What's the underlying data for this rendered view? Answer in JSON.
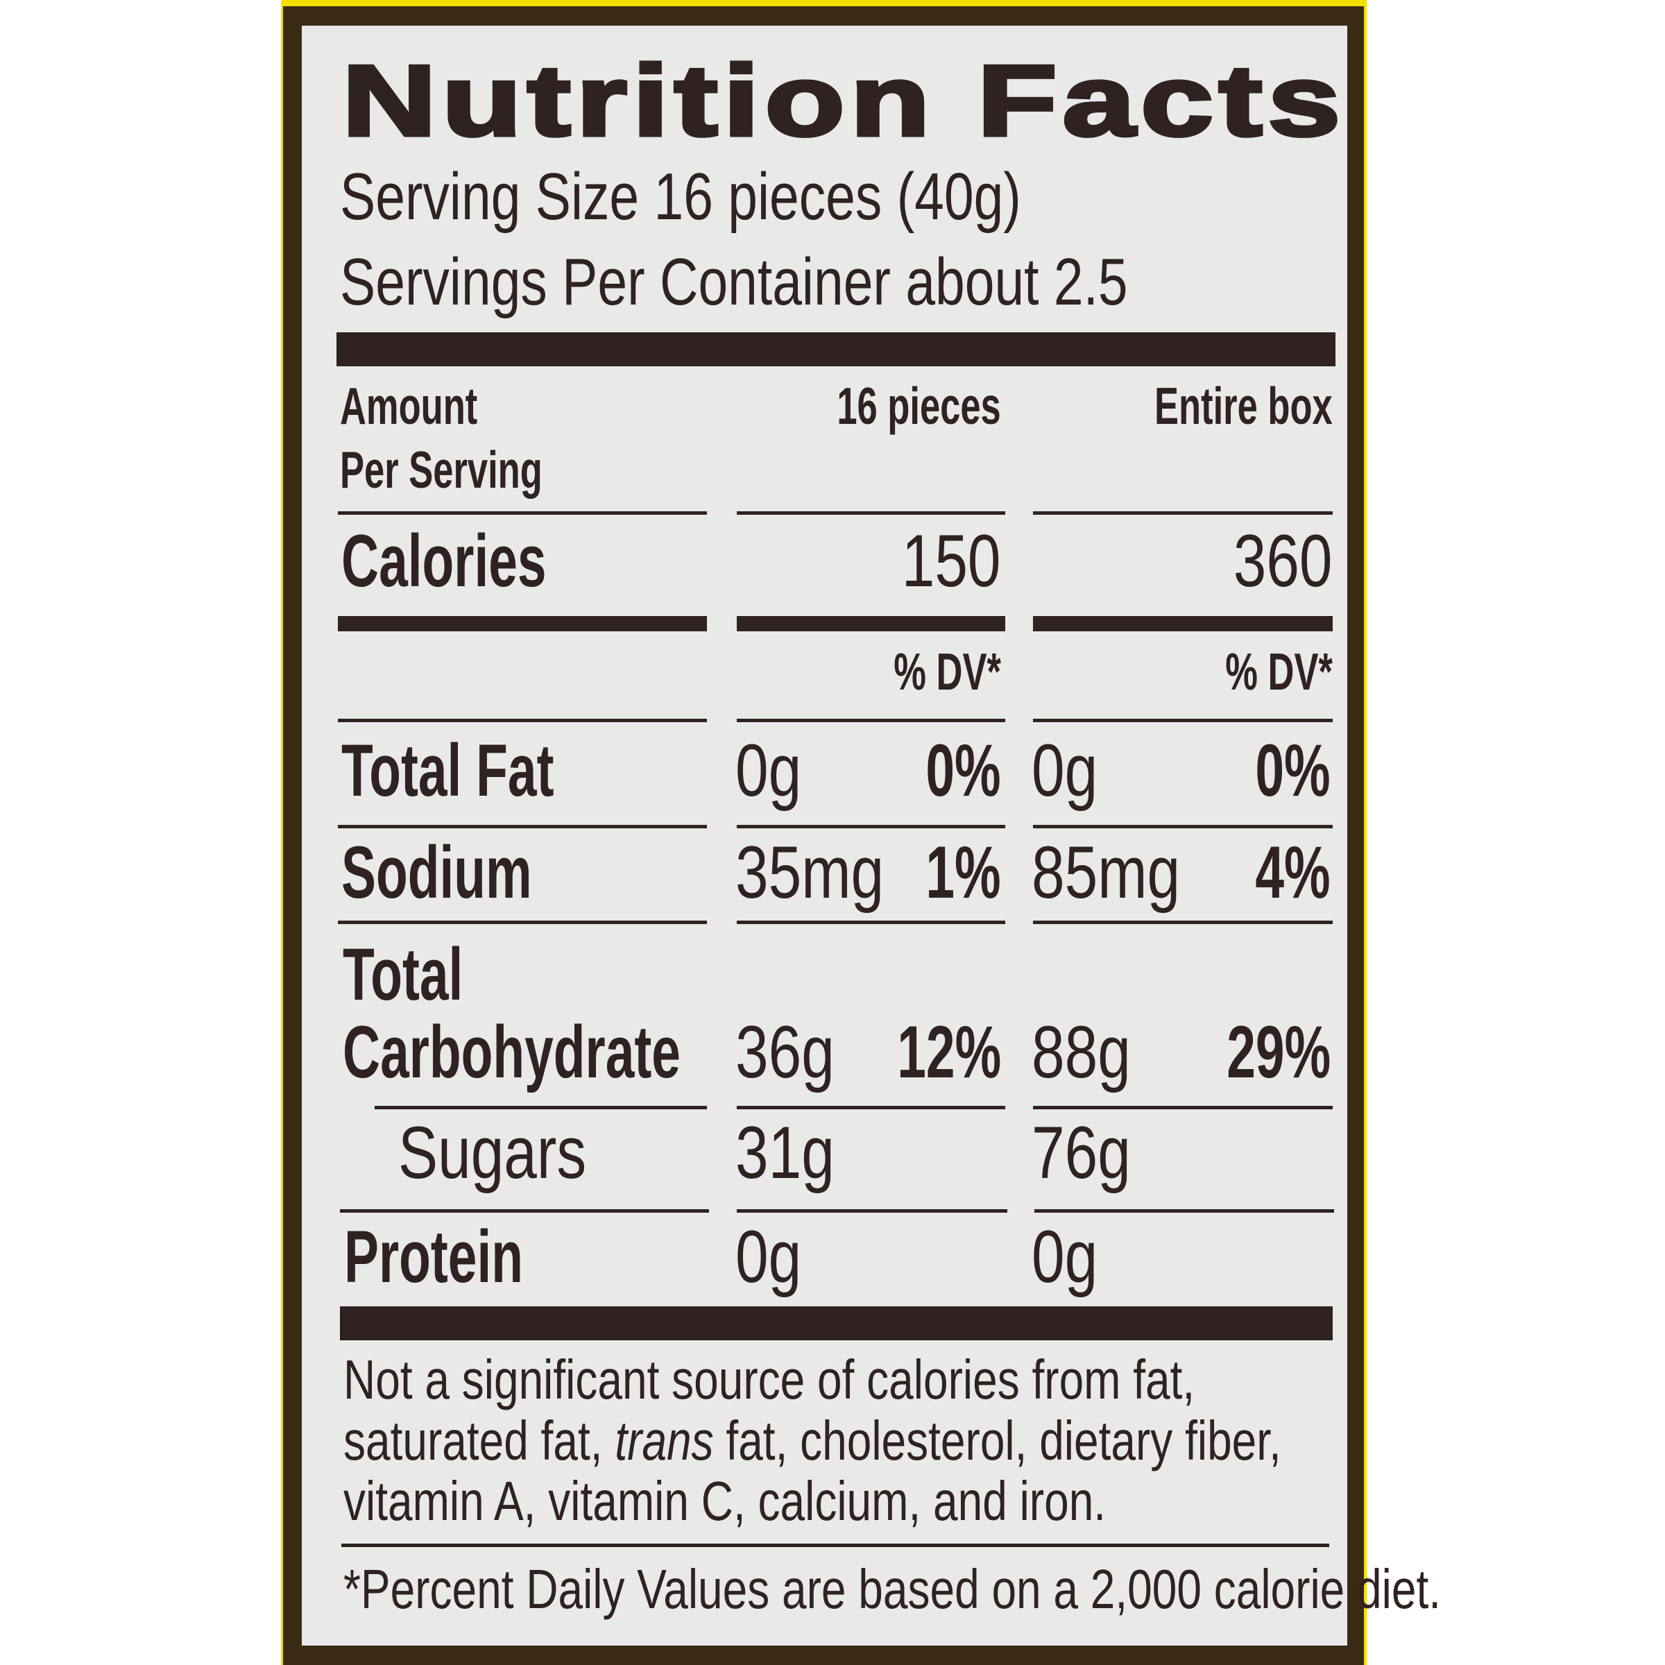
{
  "header": {
    "title": "Nutrition Facts",
    "serving_size": "Serving Size 16 pieces (40g)",
    "servings_per_container": "Servings Per Container about 2.5"
  },
  "columns": {
    "amount_label": "Amount",
    "per_serving_label": "Per Serving",
    "col1": "16 pieces",
    "col2": "Entire box",
    "dv_header": "% DV*"
  },
  "calories": {
    "label": "Calories",
    "col1": "150",
    "col2": "360"
  },
  "nutrients": [
    {
      "label": "Total Fat",
      "amount1": "0g",
      "dv1": "0%",
      "amount2": "0g",
      "dv2": "0%"
    },
    {
      "label": "Sodium",
      "amount1": "35mg",
      "dv1": "1%",
      "amount2": "85mg",
      "dv2": "4%"
    },
    {
      "label_line1": "Total",
      "label_line2": "Carbohydrate",
      "amount1": "36g",
      "dv1": "12%",
      "amount2": "88g",
      "dv2": "29%"
    },
    {
      "label": "Sugars",
      "amount1": "31g",
      "amount2": "76g"
    },
    {
      "label": "Protein",
      "amount1": "0g",
      "amount2": "0g"
    }
  ],
  "footnote": {
    "line1": "Not a significant source of calories from fat,",
    "line2_before": "saturated fat, ",
    "line2_italic": "trans",
    "line2_after": " fat, cholesterol, dietary fiber,",
    "line3": "vitamin A, vitamin C, calcium, and iron.",
    "dv_note": "*Percent Daily Values are based on a 2,000 calorie diet."
  },
  "colors": {
    "package_yellow": "#f3e000",
    "border_brown": "#3a2a14",
    "label_bg": "#e9e9ea",
    "ink": "#2f2220"
  }
}
